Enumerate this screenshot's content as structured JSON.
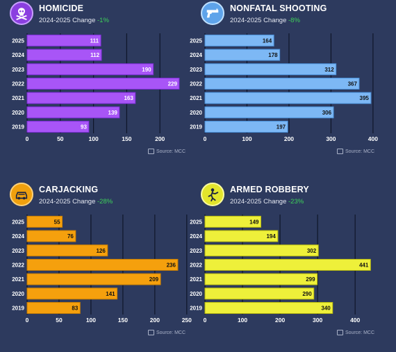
{
  "source_label": "Source: MCC",
  "change_prefix": "2024-2025 Change",
  "panels": [
    {
      "title": "HOMICIDE",
      "change": "-1%",
      "icon": "skull-crossbones-icon",
      "color": "#a855f7",
      "border": "#7c2fd6",
      "icon_bg": "#8b3fe0"
    },
    {
      "title": "NONFATAL SHOOTING",
      "change": "-8%",
      "icon": "handgun-icon",
      "color": "#7db8f5",
      "border": "#4a90d9",
      "icon_bg": "#5ea3ea"
    },
    {
      "title": "CARJACKING",
      "change": "-28%",
      "icon": "car-icon",
      "color": "#f5a00d",
      "border": "#c77e05",
      "icon_bg": "#f0a00d"
    },
    {
      "title": "ARMED ROBBERY",
      "change": "-23%",
      "icon": "robber-icon",
      "color": "#eef03a",
      "border": "#b8ba10",
      "icon_bg": "#e3e52c"
    }
  ],
  "chart_data": [
    {
      "type": "bar",
      "orientation": "horizontal",
      "title": "HOMICIDE",
      "categories": [
        "2025",
        "2024",
        "2023",
        "2022",
        "2021",
        "2020",
        "2019"
      ],
      "values": [
        111,
        112,
        190,
        229,
        163,
        139,
        93
      ],
      "xlim": [
        0,
        250
      ],
      "xticks": [
        0,
        50,
        100,
        150,
        200
      ],
      "grid": true
    },
    {
      "type": "bar",
      "orientation": "horizontal",
      "title": "NONFATAL SHOOTING",
      "categories": [
        "2025",
        "2024",
        "2023",
        "2022",
        "2021",
        "2020",
        "2019"
      ],
      "values": [
        164,
        178,
        312,
        367,
        395,
        306,
        197
      ],
      "xlim": [
        0,
        420
      ],
      "xticks": [
        0,
        100,
        200,
        300,
        400
      ],
      "grid": true
    },
    {
      "type": "bar",
      "orientation": "horizontal",
      "title": "CARJACKING",
      "categories": [
        "2025",
        "2024",
        "2023",
        "2022",
        "2021",
        "2020",
        "2019"
      ],
      "values": [
        55,
        76,
        126,
        236,
        209,
        141,
        83
      ],
      "xlim": [
        0,
        260
      ],
      "xticks": [
        0,
        50,
        100,
        150,
        200,
        250
      ],
      "grid": true
    },
    {
      "type": "bar",
      "orientation": "horizontal",
      "title": "ARMED ROBBERY",
      "categories": [
        "2025",
        "2024",
        "2023",
        "2022",
        "2021",
        "2020",
        "2019"
      ],
      "values": [
        149,
        194,
        302,
        441,
        299,
        290,
        340
      ],
      "xlim": [
        0,
        470
      ],
      "xticks": [
        0,
        100,
        200,
        300,
        400
      ],
      "grid": true
    }
  ]
}
